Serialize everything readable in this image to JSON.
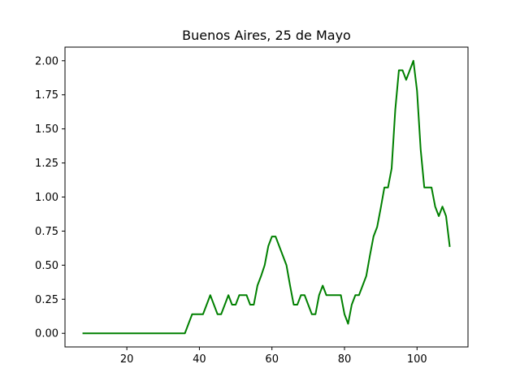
{
  "chart_data": {
    "type": "line",
    "title": "Buenos Aires, 25 de Mayo",
    "xlabel": "",
    "ylabel": "",
    "xlim": [
      2.95,
      114.05
    ],
    "ylim": [
      -0.1,
      2.1
    ],
    "x_ticks": [
      20,
      40,
      60,
      80,
      100
    ],
    "x_tick_labels": [
      "20",
      "40",
      "60",
      "80",
      "100"
    ],
    "y_ticks": [
      0,
      0.25,
      0.5,
      0.75,
      1.0,
      1.25,
      1.5,
      1.75,
      2.0
    ],
    "y_tick_labels": [
      "0.00",
      "0.25",
      "0.50",
      "0.75",
      "1.00",
      "1.25",
      "1.50",
      "1.75",
      "2.00"
    ],
    "grid": false,
    "series": [
      {
        "color": "#008000",
        "x": [
          8,
          9,
          10,
          11,
          12,
          13,
          14,
          15,
          16,
          17,
          18,
          19,
          20,
          21,
          22,
          23,
          24,
          25,
          26,
          27,
          28,
          29,
          30,
          31,
          32,
          33,
          34,
          35,
          36,
          37,
          38,
          39,
          40,
          41,
          42,
          43,
          44,
          45,
          46,
          47,
          48,
          49,
          50,
          51,
          52,
          53,
          54,
          55,
          56,
          57,
          58,
          59,
          60,
          61,
          62,
          63,
          64,
          65,
          66,
          67,
          68,
          69,
          70,
          71,
          72,
          73,
          74,
          75,
          76,
          77,
          78,
          79,
          80,
          81,
          82,
          83,
          84,
          85,
          86,
          87,
          88,
          89,
          90,
          91,
          92,
          93,
          94,
          95,
          96,
          97,
          98,
          99,
          100,
          101,
          102,
          103,
          104,
          105,
          106,
          107,
          108,
          109
        ],
        "y": [
          0,
          0,
          0,
          0,
          0,
          0,
          0,
          0,
          0,
          0,
          0,
          0,
          0,
          0,
          0,
          0,
          0,
          0,
          0,
          0,
          0,
          0,
          0,
          0,
          0,
          0,
          0,
          0,
          0,
          0.07,
          0.14,
          0.14,
          0.14,
          0.14,
          0.21,
          0.28,
          0.21,
          0.14,
          0.14,
          0.21,
          0.28,
          0.21,
          0.21,
          0.28,
          0.28,
          0.28,
          0.21,
          0.21,
          0.35,
          0.42,
          0.5,
          0.64,
          0.71,
          0.71,
          0.64,
          0.57,
          0.5,
          0.35,
          0.21,
          0.21,
          0.28,
          0.28,
          0.21,
          0.14,
          0.14,
          0.28,
          0.35,
          0.28,
          0.28,
          0.28,
          0.28,
          0.28,
          0.14,
          0.07,
          0.21,
          0.28,
          0.28,
          0.35,
          0.42,
          0.57,
          0.71,
          0.78,
          0.92,
          1.07,
          1.07,
          1.21,
          1.64,
          1.93,
          1.93,
          1.86,
          1.93,
          2.0,
          1.78,
          1.35,
          1.07,
          1.07,
          1.07,
          0.93,
          0.86,
          0.93,
          0.86,
          0.64
        ]
      }
    ]
  }
}
